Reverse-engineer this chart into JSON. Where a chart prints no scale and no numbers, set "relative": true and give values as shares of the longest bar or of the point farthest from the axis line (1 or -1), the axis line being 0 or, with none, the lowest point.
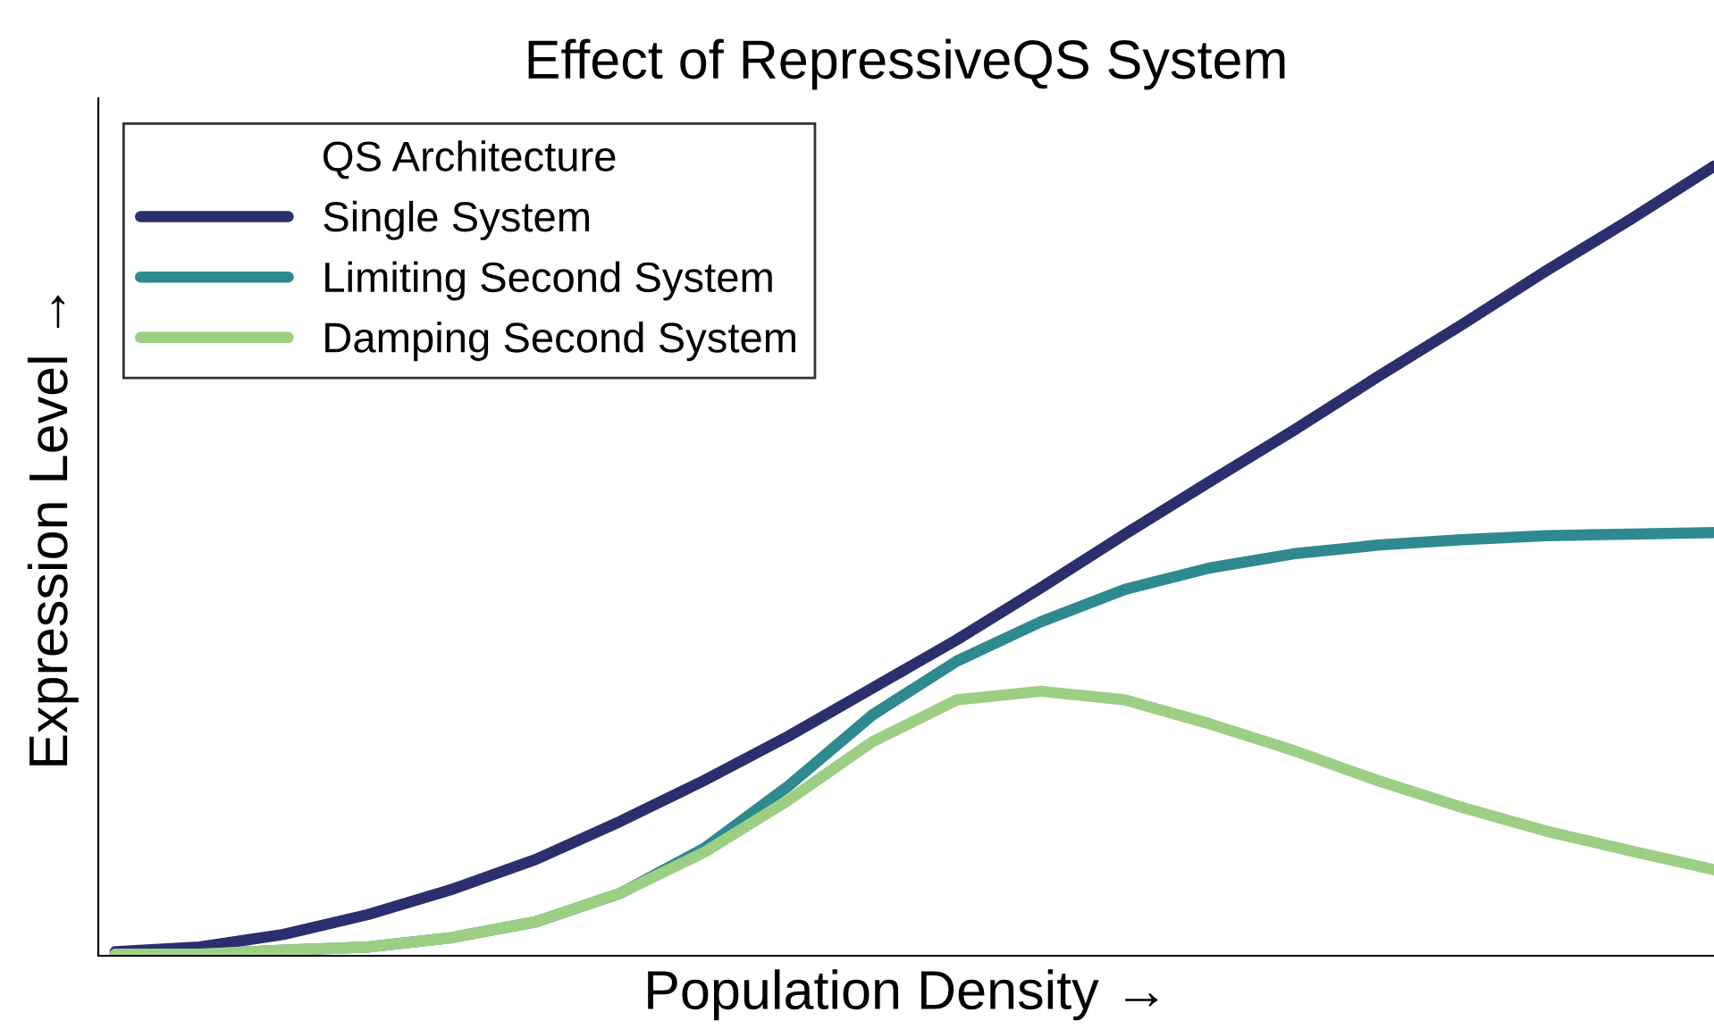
{
  "chart_data": {
    "type": "line",
    "title": "Effect of RepressiveQS System",
    "xlabel": "Population Density →",
    "ylabel": "Expression Level →",
    "legend_title": "QS Architecture",
    "legend": "top left",
    "grid": false,
    "relative": true,
    "marker": "none",
    "line_style": "solid",
    "categories": [
      null,
      null,
      null,
      null,
      null,
      null,
      null,
      null,
      null,
      null,
      null,
      null,
      null,
      null,
      null,
      null,
      null,
      null,
      null,
      null
    ],
    "series": [
      {
        "name": "Single System",
        "color": "#2b2f6e",
        "values": [
          0.005,
          0.011,
          0.027,
          0.052,
          0.084,
          0.122,
          0.17,
          0.222,
          0.278,
          0.339,
          0.4,
          0.466,
          0.534,
          0.6,
          0.665,
          0.733,
          0.799,
          0.867,
          0.932,
          1
        ]
      },
      {
        "name": "Limiting Second System",
        "color": "#2e8a8e",
        "values": [
          0.002,
          0.002,
          0.007,
          0.011,
          0.023,
          0.043,
          0.079,
          0.136,
          0.215,
          0.305,
          0.373,
          0.423,
          0.464,
          0.491,
          0.509,
          0.52,
          0.527,
          0.532,
          0.534,
          0.536
        ]
      },
      {
        "name": "Damping Second System",
        "color": "#9ccf84",
        "values": [
          0.002,
          0.002,
          0.007,
          0.011,
          0.023,
          0.043,
          0.079,
          0.131,
          0.197,
          0.271,
          0.324,
          0.335,
          0.324,
          0.294,
          0.26,
          0.222,
          0.188,
          0.158,
          0.133,
          0.109
        ]
      }
    ]
  }
}
